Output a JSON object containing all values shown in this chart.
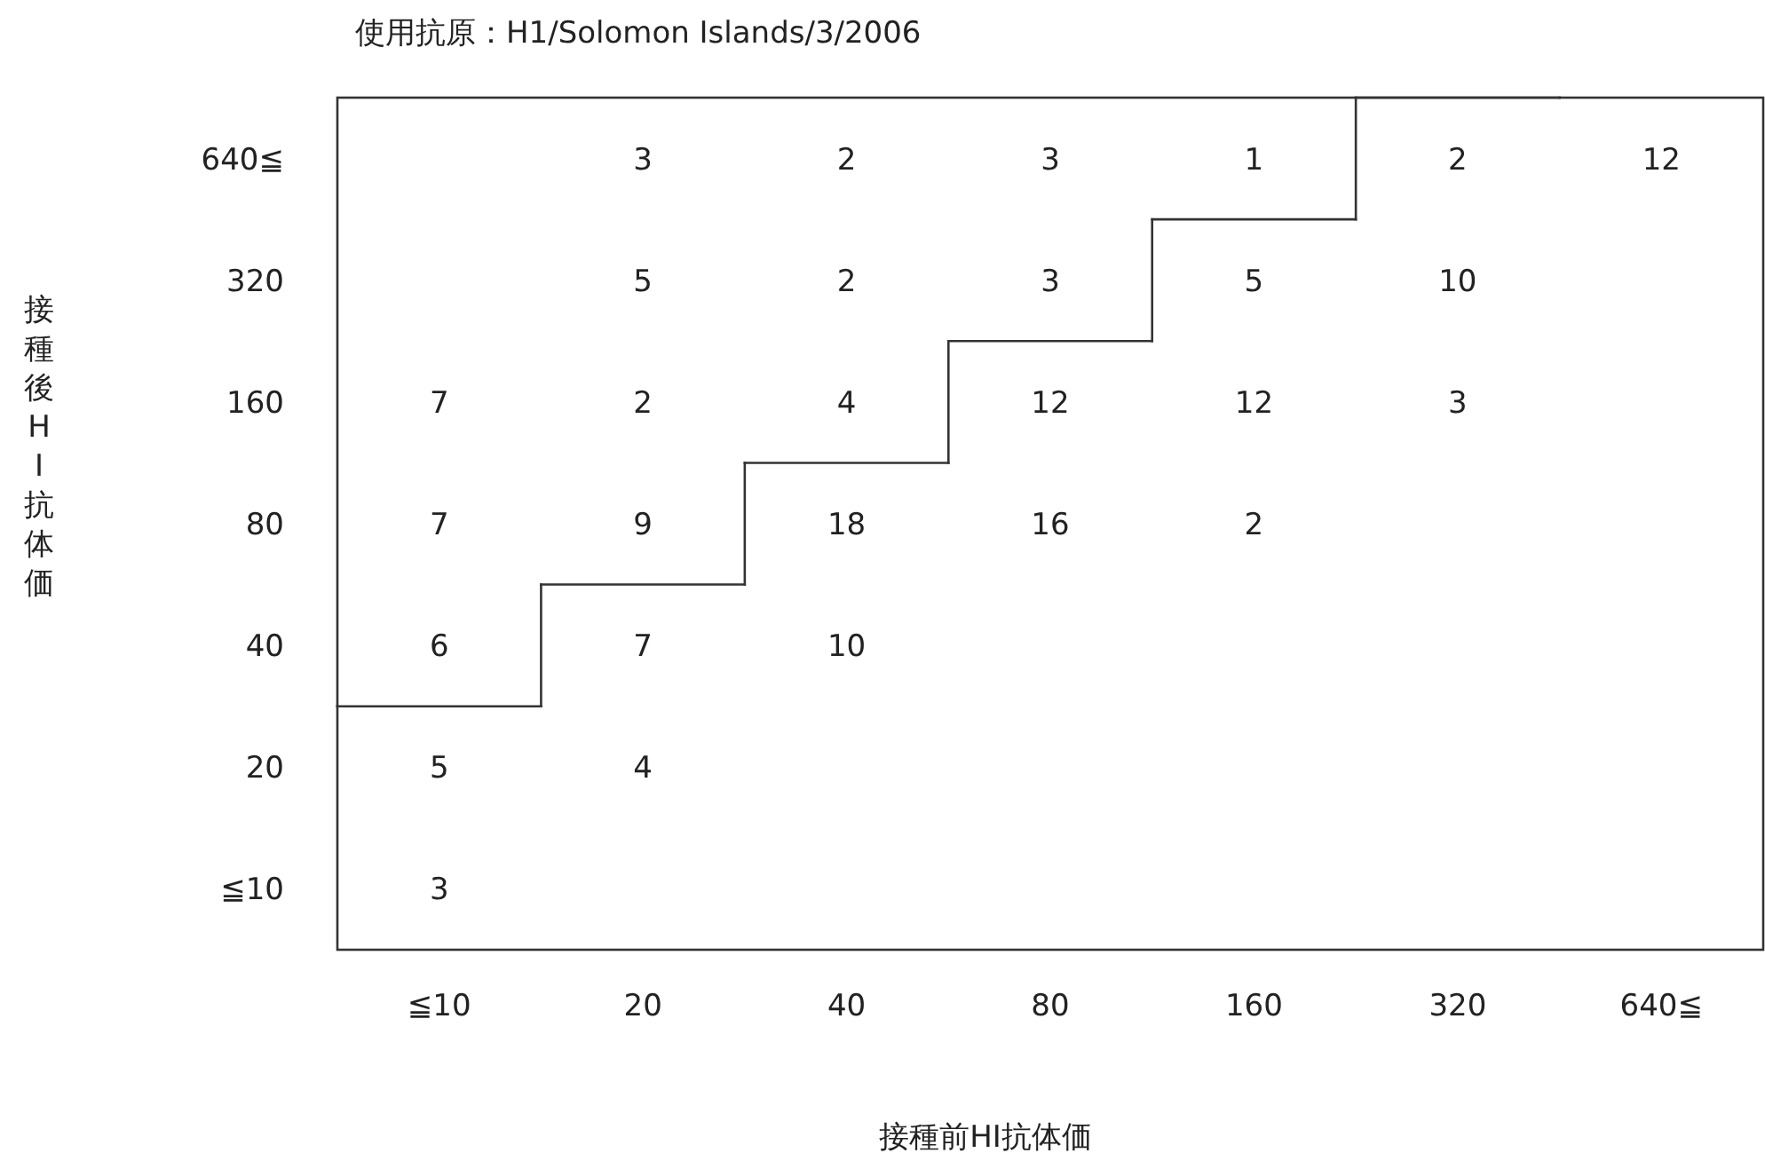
{
  "chart_data": {
    "type": "heatmap",
    "title": "使用抗原：H1/Solomon Islands/3/2006",
    "xlabel": "接種前HI抗体価",
    "ylabel": "接種後HI抗体価",
    "categories": [
      "≦10",
      "20",
      "40",
      "80",
      "160",
      "320",
      "640≦"
    ],
    "y_categories": [
      "640≦",
      "320",
      "160",
      "80",
      "40",
      "20",
      "≦10"
    ],
    "cells": [
      [
        null,
        3,
        2,
        3,
        1,
        2,
        12
      ],
      [
        null,
        5,
        2,
        3,
        5,
        10,
        null
      ],
      [
        7,
        2,
        4,
        12,
        12,
        3,
        null
      ],
      [
        7,
        9,
        18,
        16,
        2,
        null,
        null
      ],
      [
        6,
        7,
        10,
        null,
        null,
        null,
        null
      ],
      [
        5,
        4,
        null,
        null,
        null,
        null,
        null
      ],
      [
        3,
        null,
        null,
        null,
        null,
        null,
        null
      ]
    ],
    "data_labels": true
  }
}
